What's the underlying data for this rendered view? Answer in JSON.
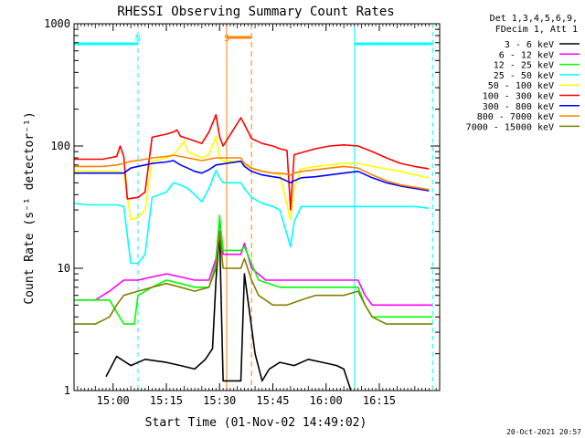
{
  "chart_data": {
    "type": "line",
    "title": "RHESSI Observing Summary Count Rates",
    "xlabel": "Start Time (01-Nov-02 14:49:02)",
    "ylabel": "Count Rate (s⁻¹ detector⁻¹)",
    "y_scale": "log",
    "ylim": [
      1,
      1000
    ],
    "xlim_minutes": [
      0,
      103
    ],
    "x_ticks": [
      {
        "label": "15:00",
        "minute": 11
      },
      {
        "label": "15:15",
        "minute": 26
      },
      {
        "label": "15:30",
        "minute": 41
      },
      {
        "label": "15:45",
        "minute": 56
      },
      {
        "label": "16:00",
        "minute": 71
      },
      {
        "label": "16:15",
        "minute": 86
      }
    ],
    "y_ticks": [
      {
        "label": "1",
        "value": 1
      },
      {
        "label": "10",
        "value": 10
      },
      {
        "label": "100",
        "value": 100
      },
      {
        "label": "1000",
        "value": 1000
      }
    ],
    "legend": {
      "placement": "top-right, outside plot",
      "header": [
        "Det 1,3,4,5,6,9,",
        "FDecim 1, Att 1"
      ]
    },
    "annotations": [
      {
        "text": "N",
        "color": "#00ffff",
        "minute": 18
      },
      {
        "text": "S",
        "color": "#ff8000",
        "minute": 43
      }
    ],
    "timestamp": "20-Oct-2021 20:57",
    "night_intervals": [
      [
        0,
        18
      ],
      [
        79,
        101
      ]
    ],
    "saa_interval": [
      43,
      50
    ],
    "series": [
      {
        "name": "3 - 6 keV",
        "color": "#000000",
        "points": [
          [
            9,
            1.3
          ],
          [
            12,
            1.9
          ],
          [
            16,
            1.6
          ],
          [
            20,
            1.8
          ],
          [
            26,
            1.7
          ],
          [
            30,
            1.6
          ],
          [
            34,
            1.5
          ],
          [
            37,
            1.8
          ],
          [
            39,
            2.2
          ],
          [
            40,
            8
          ],
          [
            41,
            20
          ],
          [
            42,
            1.2
          ],
          [
            47,
            1.2
          ],
          [
            48,
            9
          ],
          [
            51,
            2
          ],
          [
            53,
            1.2
          ],
          [
            55,
            1.5
          ],
          [
            58,
            1.7
          ],
          [
            62,
            1.6
          ],
          [
            66,
            1.8
          ],
          [
            70,
            1.7
          ],
          [
            74,
            1.6
          ],
          [
            76,
            1.5
          ],
          [
            78,
            1.0
          ]
        ]
      },
      {
        "name": "6 - 12 keV",
        "color": "#ff00ff",
        "points": [
          [
            0,
            5.5
          ],
          [
            6,
            5.5
          ],
          [
            10,
            6.5
          ],
          [
            14,
            8
          ],
          [
            18,
            8
          ],
          [
            22,
            8.5
          ],
          [
            26,
            9
          ],
          [
            30,
            8.5
          ],
          [
            34,
            8
          ],
          [
            38,
            8
          ],
          [
            40,
            12
          ],
          [
            41,
            25
          ],
          [
            42,
            13
          ],
          [
            47,
            13
          ],
          [
            48,
            16
          ],
          [
            50,
            10
          ],
          [
            54,
            8
          ],
          [
            60,
            8
          ],
          [
            66,
            8
          ],
          [
            72,
            8
          ],
          [
            76,
            8
          ],
          [
            80,
            8
          ],
          [
            82,
            6
          ],
          [
            84,
            5
          ],
          [
            86,
            5
          ],
          [
            90,
            5
          ],
          [
            94,
            5
          ],
          [
            98,
            5
          ],
          [
            101,
            5
          ]
        ]
      },
      {
        "name": "12 - 25 keV",
        "color": "#00ff00",
        "points": [
          [
            0,
            5.5
          ],
          [
            6,
            5.5
          ],
          [
            10,
            5.5
          ],
          [
            14,
            3.5
          ],
          [
            17,
            3.5
          ],
          [
            18,
            6
          ],
          [
            22,
            7
          ],
          [
            26,
            8
          ],
          [
            30,
            7.5
          ],
          [
            34,
            7
          ],
          [
            38,
            7
          ],
          [
            40,
            11
          ],
          [
            41,
            27
          ],
          [
            42,
            14
          ],
          [
            47,
            14
          ],
          [
            48,
            15
          ],
          [
            52,
            8
          ],
          [
            58,
            7
          ],
          [
            62,
            7
          ],
          [
            66,
            7
          ],
          [
            72,
            7
          ],
          [
            76,
            7
          ],
          [
            80,
            7
          ],
          [
            82,
            5
          ],
          [
            84,
            4
          ],
          [
            88,
            4
          ],
          [
            92,
            4
          ],
          [
            96,
            4
          ],
          [
            101,
            4
          ]
        ]
      },
      {
        "name": "25 - 50 keV",
        "color": "#00ffff",
        "points": [
          [
            0,
            34
          ],
          [
            4,
            33
          ],
          [
            8,
            33
          ],
          [
            12,
            33
          ],
          [
            14,
            32
          ],
          [
            16,
            11
          ],
          [
            18,
            11
          ],
          [
            20,
            13
          ],
          [
            22,
            38
          ],
          [
            26,
            42
          ],
          [
            28,
            50
          ],
          [
            30,
            48
          ],
          [
            32,
            45
          ],
          [
            34,
            40
          ],
          [
            36,
            35
          ],
          [
            38,
            45
          ],
          [
            40,
            63
          ],
          [
            41,
            55
          ],
          [
            42,
            50
          ],
          [
            47,
            50
          ],
          [
            48,
            45
          ],
          [
            50,
            38
          ],
          [
            53,
            34
          ],
          [
            56,
            32
          ],
          [
            58,
            30
          ],
          [
            61,
            15
          ],
          [
            62,
            24
          ],
          [
            64,
            32
          ],
          [
            68,
            32
          ],
          [
            72,
            32
          ],
          [
            76,
            32
          ],
          [
            80,
            32
          ],
          [
            84,
            32
          ],
          [
            88,
            32
          ],
          [
            92,
            32
          ],
          [
            96,
            32
          ],
          [
            100,
            31
          ]
        ]
      },
      {
        "name": "50 - 100 keV",
        "color": "#ffff00",
        "points": [
          [
            0,
            63
          ],
          [
            4,
            62
          ],
          [
            8,
            62
          ],
          [
            12,
            62
          ],
          [
            14,
            60
          ],
          [
            16,
            25
          ],
          [
            18,
            26
          ],
          [
            20,
            30
          ],
          [
            22,
            75
          ],
          [
            26,
            80
          ],
          [
            28,
            85
          ],
          [
            30,
            100
          ],
          [
            31,
            110
          ],
          [
            32,
            90
          ],
          [
            34,
            85
          ],
          [
            36,
            80
          ],
          [
            38,
            85
          ],
          [
            40,
            120
          ],
          [
            41,
            80
          ],
          [
            42,
            75
          ],
          [
            47,
            75
          ],
          [
            48,
            70
          ],
          [
            50,
            65
          ],
          [
            53,
            62
          ],
          [
            56,
            60
          ],
          [
            58,
            58
          ],
          [
            61,
            25
          ],
          [
            62,
            45
          ],
          [
            64,
            65
          ],
          [
            68,
            68
          ],
          [
            72,
            70
          ],
          [
            76,
            72
          ],
          [
            80,
            72
          ],
          [
            84,
            68
          ],
          [
            88,
            65
          ],
          [
            92,
            62
          ],
          [
            96,
            58
          ],
          [
            100,
            55
          ]
        ]
      },
      {
        "name": "100 - 300 keV",
        "color": "#ff0000",
        "points": [
          [
            0,
            78
          ],
          [
            4,
            78
          ],
          [
            8,
            78
          ],
          [
            12,
            82
          ],
          [
            13,
            100
          ],
          [
            14,
            82
          ],
          [
            15,
            37
          ],
          [
            18,
            38
          ],
          [
            20,
            42
          ],
          [
            22,
            118
          ],
          [
            26,
            125
          ],
          [
            28,
            130
          ],
          [
            29,
            135
          ],
          [
            30,
            120
          ],
          [
            32,
            115
          ],
          [
            34,
            110
          ],
          [
            36,
            105
          ],
          [
            38,
            130
          ],
          [
            40,
            180
          ],
          [
            41,
            120
          ],
          [
            42,
            100
          ],
          [
            47,
            170
          ],
          [
            48,
            150
          ],
          [
            50,
            115
          ],
          [
            53,
            105
          ],
          [
            56,
            100
          ],
          [
            58,
            95
          ],
          [
            60,
            92
          ],
          [
            61,
            30
          ],
          [
            62,
            85
          ],
          [
            64,
            88
          ],
          [
            68,
            95
          ],
          [
            72,
            100
          ],
          [
            76,
            102
          ],
          [
            80,
            100
          ],
          [
            84,
            90
          ],
          [
            88,
            80
          ],
          [
            92,
            72
          ],
          [
            96,
            68
          ],
          [
            100,
            65
          ]
        ]
      },
      {
        "name": "300 - 800 keV",
        "color": "#0000ff",
        "points": [
          [
            0,
            60
          ],
          [
            4,
            60
          ],
          [
            8,
            60
          ],
          [
            12,
            60
          ],
          [
            14,
            60
          ],
          [
            16,
            66
          ],
          [
            18,
            68
          ],
          [
            20,
            70
          ],
          [
            22,
            72
          ],
          [
            26,
            74
          ],
          [
            28,
            76
          ],
          [
            30,
            70
          ],
          [
            32,
            66
          ],
          [
            34,
            62
          ],
          [
            36,
            60
          ],
          [
            38,
            64
          ],
          [
            40,
            70
          ],
          [
            47,
            75
          ],
          [
            48,
            68
          ],
          [
            50,
            62
          ],
          [
            53,
            58
          ],
          [
            56,
            56
          ],
          [
            58,
            55
          ],
          [
            61,
            50
          ],
          [
            62,
            52
          ],
          [
            64,
            55
          ],
          [
            68,
            56
          ],
          [
            72,
            58
          ],
          [
            76,
            60
          ],
          [
            80,
            62
          ],
          [
            84,
            55
          ],
          [
            88,
            50
          ],
          [
            92,
            47
          ],
          [
            96,
            45
          ],
          [
            100,
            43
          ]
        ]
      },
      {
        "name": "800 - 7000 keV",
        "color": "#ff8000",
        "points": [
          [
            0,
            68
          ],
          [
            4,
            68
          ],
          [
            8,
            68
          ],
          [
            12,
            70
          ],
          [
            14,
            72
          ],
          [
            16,
            75
          ],
          [
            18,
            76
          ],
          [
            20,
            78
          ],
          [
            22,
            80
          ],
          [
            26,
            82
          ],
          [
            28,
            84
          ],
          [
            30,
            82
          ],
          [
            32,
            80
          ],
          [
            34,
            78
          ],
          [
            36,
            76
          ],
          [
            38,
            78
          ],
          [
            40,
            80
          ],
          [
            47,
            80
          ],
          [
            48,
            72
          ],
          [
            50,
            66
          ],
          [
            53,
            62
          ],
          [
            56,
            60
          ],
          [
            58,
            60
          ],
          [
            61,
            58
          ],
          [
            62,
            60
          ],
          [
            64,
            62
          ],
          [
            68,
            64
          ],
          [
            72,
            66
          ],
          [
            76,
            68
          ],
          [
            80,
            66
          ],
          [
            84,
            58
          ],
          [
            88,
            52
          ],
          [
            92,
            48
          ],
          [
            96,
            46
          ],
          [
            100,
            44
          ]
        ]
      },
      {
        "name": "7000 - 15000 keV",
        "color": "#808000",
        "points": [
          [
            0,
            3.5
          ],
          [
            6,
            3.5
          ],
          [
            10,
            4
          ],
          [
            12,
            5
          ],
          [
            14,
            6
          ],
          [
            18,
            6.5
          ],
          [
            22,
            7
          ],
          [
            26,
            7.5
          ],
          [
            30,
            7
          ],
          [
            34,
            6.5
          ],
          [
            38,
            7
          ],
          [
            40,
            10
          ],
          [
            41,
            20
          ],
          [
            42,
            10
          ],
          [
            47,
            10
          ],
          [
            48,
            12
          ],
          [
            50,
            8
          ],
          [
            52,
            6
          ],
          [
            56,
            5
          ],
          [
            60,
            5
          ],
          [
            64,
            5.5
          ],
          [
            68,
            6
          ],
          [
            72,
            6
          ],
          [
            76,
            6
          ],
          [
            80,
            6.5
          ],
          [
            82,
            5
          ],
          [
            84,
            4
          ],
          [
            88,
            3.5
          ],
          [
            92,
            3.5
          ],
          [
            96,
            3.5
          ],
          [
            101,
            3.5
          ]
        ]
      }
    ]
  }
}
